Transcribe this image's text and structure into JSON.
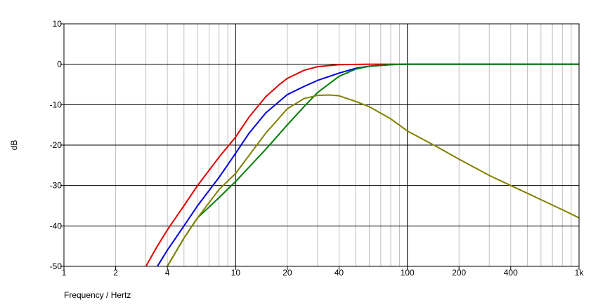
{
  "chart_data": {
    "type": "line",
    "xlabel": "Frequency / Hertz",
    "ylabel": "dB",
    "xscale": "log",
    "xlim": [
      1,
      1000
    ],
    "ylim": [
      -50,
      10
    ],
    "x_ticks": [
      1,
      2,
      4,
      10,
      20,
      40,
      100,
      200,
      400,
      1000
    ],
    "x_tick_labels": [
      "1",
      "2",
      "4",
      "10",
      "20",
      "40",
      "100",
      "200",
      "400",
      "1k"
    ],
    "y_ticks": [
      10,
      0,
      -10,
      -20,
      -30,
      -40,
      -50
    ],
    "y_tick_labels": [
      "10",
      "0",
      "-10",
      "-20",
      "-30",
      "-40",
      "-50"
    ],
    "grid": true,
    "series": [
      {
        "color": "#e00000",
        "x": [
          3,
          3.5,
          4,
          5,
          6,
          8,
          10,
          12,
          15,
          18,
          20,
          25,
          30,
          40,
          60,
          100,
          1000
        ],
        "y": [
          -50,
          -45,
          -41,
          -35,
          -30,
          -23,
          -18,
          -13,
          -8,
          -5,
          -3.5,
          -1.5,
          -0.6,
          -0.1,
          0,
          0,
          0
        ]
      },
      {
        "color": "#0000e0",
        "x": [
          3.5,
          4,
          5,
          6,
          8,
          10,
          12,
          15,
          20,
          25,
          30,
          40,
          50,
          60,
          80,
          100,
          1000
        ],
        "y": [
          -50,
          -46,
          -40,
          -35,
          -28,
          -22,
          -17,
          -12,
          -7.5,
          -5.5,
          -4,
          -2.2,
          -1,
          -0.5,
          -0.1,
          0,
          0
        ]
      },
      {
        "color": "#008000",
        "x": [
          4,
          5,
          6,
          8,
          10,
          15,
          20,
          25,
          30,
          40,
          50,
          60,
          80,
          100,
          1000
        ],
        "y": [
          -50,
          -43,
          -38,
          -33,
          -29,
          -21,
          -15,
          -10.5,
          -7,
          -3,
          -1.2,
          -0.5,
          -0.1,
          0,
          0
        ]
      },
      {
        "color": "#808000",
        "x": [
          4,
          5,
          6,
          8,
          10,
          15,
          20,
          25,
          30,
          35,
          40,
          50,
          60,
          80,
          100,
          150,
          200,
          300,
          400,
          600,
          800,
          1000
        ],
        "y": [
          -50,
          -43,
          -38,
          -31,
          -27,
          -17,
          -11,
          -8.5,
          -7.7,
          -7.6,
          -7.8,
          -9.2,
          -10.5,
          -13.5,
          -16.5,
          -20.5,
          -23.5,
          -27.5,
          -30,
          -33.5,
          -36,
          -38
        ]
      }
    ]
  }
}
